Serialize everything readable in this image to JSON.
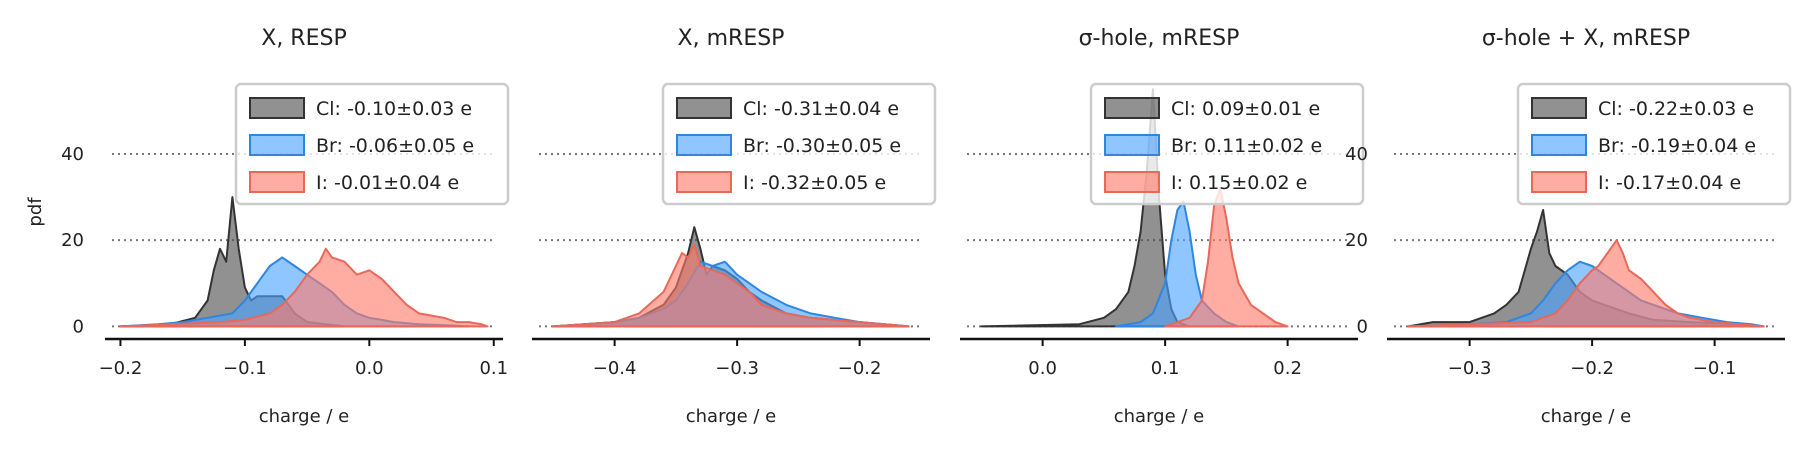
{
  "figure": {
    "ylabel": "pdf"
  },
  "chart_data": [
    {
      "type": "area",
      "title": "X, RESP",
      "xlabel": "charge / e",
      "ylabel": "pdf",
      "xlim": [
        -0.21,
        0.105
      ],
      "ylim": [
        -2,
        56
      ],
      "xticks": [
        -0.2,
        -0.1,
        0.0,
        0.1
      ],
      "xtick_labels": [
        "−0.2",
        "−0.1",
        "0.0",
        "0.1"
      ],
      "yticks": [
        0,
        20,
        40
      ],
      "ytick_labels": [
        "0",
        "20",
        "40"
      ],
      "ytick_labels_visible": true,
      "reference_lines_y": [
        0,
        20,
        40
      ],
      "legend_position": "top-right",
      "series": [
        {
          "name": "Cl",
          "legend_label": "Cl: -0.10±0.03 e",
          "x": [
            -0.2,
            -0.16,
            -0.14,
            -0.13,
            -0.125,
            -0.12,
            -0.115,
            -0.11,
            -0.105,
            -0.1,
            -0.095,
            -0.09,
            -0.08,
            -0.07,
            -0.06,
            -0.05,
            -0.02
          ],
          "y": [
            0,
            0.5,
            2,
            6,
            13,
            18,
            15,
            30,
            18,
            9,
            6,
            7,
            7,
            7,
            3,
            1,
            0
          ]
        },
        {
          "name": "Br",
          "legend_label": "Br: -0.06±0.05 e",
          "x": [
            -0.2,
            -0.17,
            -0.15,
            -0.13,
            -0.11,
            -0.1,
            -0.09,
            -0.08,
            -0.07,
            -0.06,
            -0.05,
            -0.04,
            -0.03,
            -0.02,
            -0.01,
            0.0,
            0.01,
            0.02,
            0.04,
            0.06,
            0.08
          ],
          "y": [
            0,
            0.5,
            1,
            2,
            3,
            6,
            10,
            14,
            16,
            14,
            12,
            10,
            8,
            5,
            3,
            2,
            1.5,
            1,
            0.5,
            0.3,
            0
          ]
        },
        {
          "name": "I",
          "legend_label": "I: -0.01±0.04 e",
          "x": [
            -0.2,
            -0.16,
            -0.12,
            -0.1,
            -0.08,
            -0.07,
            -0.06,
            -0.05,
            -0.04,
            -0.035,
            -0.03,
            -0.02,
            -0.01,
            0.0,
            0.01,
            0.02,
            0.03,
            0.04,
            0.05,
            0.06,
            0.07,
            0.08,
            0.09,
            0.095
          ],
          "y": [
            0,
            0.5,
            1,
            1.5,
            3,
            5,
            8,
            12,
            15,
            18,
            16,
            15,
            12,
            13,
            11,
            8,
            5,
            3,
            2.5,
            2,
            1,
            1,
            0.5,
            0
          ]
        }
      ]
    },
    {
      "type": "area",
      "title": "X, mRESP",
      "xlabel": "charge / e",
      "ylabel": "",
      "xlim": [
        -0.465,
        -0.145
      ],
      "ylim": [
        -2,
        56
      ],
      "xticks": [
        -0.4,
        -0.3,
        -0.2
      ],
      "xtick_labels": [
        "−0.4",
        "−0.3",
        "−0.2"
      ],
      "yticks": [
        0,
        20,
        40
      ],
      "ytick_labels": [
        "0",
        "20",
        "40"
      ],
      "ytick_labels_visible": false,
      "reference_lines_y": [
        0,
        20,
        40
      ],
      "legend_position": "top-right",
      "series": [
        {
          "name": "Cl",
          "legend_label": "Cl: -0.31±0.04 e",
          "x": [
            -0.45,
            -0.4,
            -0.38,
            -0.36,
            -0.35,
            -0.34,
            -0.335,
            -0.33,
            -0.325,
            -0.32,
            -0.31,
            -0.3,
            -0.29,
            -0.28,
            -0.26,
            -0.24,
            -0.2,
            -0.16
          ],
          "y": [
            0,
            1,
            2,
            5,
            9,
            17,
            23,
            18,
            12,
            14,
            13,
            11,
            8,
            6,
            3,
            2,
            1,
            0
          ]
        },
        {
          "name": "Br",
          "legend_label": "Br: -0.30±0.05 e",
          "x": [
            -0.45,
            -0.4,
            -0.38,
            -0.36,
            -0.35,
            -0.34,
            -0.33,
            -0.32,
            -0.31,
            -0.3,
            -0.29,
            -0.28,
            -0.26,
            -0.24,
            -0.22,
            -0.2,
            -0.16
          ],
          "y": [
            0,
            1,
            2,
            4,
            6,
            10,
            15,
            14,
            15,
            12,
            10,
            8,
            5,
            3,
            2,
            1,
            0
          ]
        },
        {
          "name": "I",
          "legend_label": "I: -0.32±0.05 e",
          "x": [
            -0.45,
            -0.4,
            -0.38,
            -0.36,
            -0.35,
            -0.345,
            -0.34,
            -0.335,
            -0.33,
            -0.32,
            -0.31,
            -0.3,
            -0.29,
            -0.28,
            -0.26,
            -0.24,
            -0.2,
            -0.16
          ],
          "y": [
            0,
            1,
            3,
            8,
            14,
            17,
            16,
            19,
            14,
            13,
            12,
            10,
            8,
            5,
            3,
            2,
            1,
            0
          ]
        }
      ]
    },
    {
      "type": "area",
      "title": "σ-hole, mRESP",
      "xlabel": "charge / e",
      "ylabel": "",
      "xlim": [
        -0.065,
        0.255
      ],
      "ylim": [
        -2,
        56
      ],
      "xticks": [
        0.0,
        0.1,
        0.2
      ],
      "xtick_labels": [
        "0.0",
        "0.1",
        "0.2"
      ],
      "yticks": [
        0,
        20,
        40
      ],
      "ytick_labels": [
        "0",
        "20",
        "40"
      ],
      "ytick_labels_visible": false,
      "reference_lines_y": [
        0,
        20,
        40
      ],
      "legend_position": "top-right",
      "series": [
        {
          "name": "Cl",
          "legend_label": "Cl: 0.09±0.01 e",
          "x": [
            -0.05,
            0.03,
            0.05,
            0.06,
            0.07,
            0.075,
            0.08,
            0.085,
            0.09,
            0.095,
            0.1,
            0.105,
            0.11,
            0.12
          ],
          "y": [
            0,
            0.5,
            2,
            4,
            8,
            14,
            22,
            36,
            55,
            30,
            12,
            4,
            1,
            0
          ]
        },
        {
          "name": "Br",
          "legend_label": "Br: 0.11±0.02 e",
          "x": [
            0.06,
            0.08,
            0.09,
            0.1,
            0.105,
            0.11,
            0.115,
            0.12,
            0.125,
            0.13,
            0.14,
            0.15,
            0.16
          ],
          "y": [
            0,
            1,
            3,
            10,
            20,
            27,
            29,
            22,
            12,
            6,
            3,
            1,
            0
          ]
        },
        {
          "name": "I",
          "legend_label": "I: 0.15±0.02 e",
          "x": [
            0.1,
            0.12,
            0.13,
            0.135,
            0.14,
            0.145,
            0.15,
            0.155,
            0.16,
            0.17,
            0.18,
            0.19,
            0.2
          ],
          "y": [
            0,
            2,
            6,
            15,
            28,
            32,
            25,
            16,
            10,
            5,
            3,
            1,
            0
          ]
        }
      ]
    },
    {
      "type": "area",
      "title": "σ-hole + X, mRESP",
      "xlabel": "charge / e",
      "ylabel": "",
      "xlim": [
        -0.365,
        -0.045
      ],
      "ylim": [
        -2,
        56
      ],
      "xticks": [
        -0.3,
        -0.2,
        -0.1
      ],
      "xtick_labels": [
        "−0.3",
        "−0.2",
        "−0.1"
      ],
      "yticks": [
        0,
        20,
        40
      ],
      "ytick_labels": [
        "0",
        "20",
        "40"
      ],
      "ytick_labels_visible": true,
      "reference_lines_y": [
        0,
        20,
        40
      ],
      "legend_position": "top-right",
      "series": [
        {
          "name": "Cl",
          "legend_label": "Cl: -0.22±0.03 e",
          "x": [
            -0.35,
            -0.33,
            -0.3,
            -0.28,
            -0.27,
            -0.26,
            -0.255,
            -0.25,
            -0.245,
            -0.24,
            -0.235,
            -0.23,
            -0.22,
            -0.21,
            -0.2,
            -0.19,
            -0.18,
            -0.17,
            -0.15,
            -0.12,
            -0.08,
            -0.06
          ],
          "y": [
            0,
            1,
            1,
            3,
            5,
            8,
            13,
            18,
            22,
            27,
            17,
            14,
            12,
            8,
            6,
            5,
            4,
            3,
            1.5,
            1,
            0.5,
            0
          ]
        },
        {
          "name": "Br",
          "legend_label": "Br: -0.19±0.04 e",
          "x": [
            -0.35,
            -0.3,
            -0.27,
            -0.25,
            -0.24,
            -0.23,
            -0.22,
            -0.21,
            -0.2,
            -0.19,
            -0.18,
            -0.17,
            -0.16,
            -0.15,
            -0.13,
            -0.11,
            -0.09,
            -0.07,
            -0.06
          ],
          "y": [
            0,
            0.5,
            1,
            3,
            6,
            10,
            13,
            15,
            14,
            12,
            10,
            8,
            6,
            5,
            3,
            2,
            1,
            0.5,
            0
          ]
        },
        {
          "name": "I",
          "legend_label": "I: -0.17±0.04 e",
          "x": [
            -0.35,
            -0.3,
            -0.25,
            -0.23,
            -0.22,
            -0.21,
            -0.2,
            -0.195,
            -0.19,
            -0.185,
            -0.18,
            -0.175,
            -0.17,
            -0.16,
            -0.15,
            -0.14,
            -0.13,
            -0.12,
            -0.1,
            -0.08,
            -0.06
          ],
          "y": [
            0,
            0.5,
            1,
            3,
            6,
            10,
            13,
            14,
            16,
            18,
            20,
            17,
            13,
            11,
            8,
            5,
            3,
            2,
            1,
            0.5,
            0
          ]
        }
      ]
    }
  ]
}
